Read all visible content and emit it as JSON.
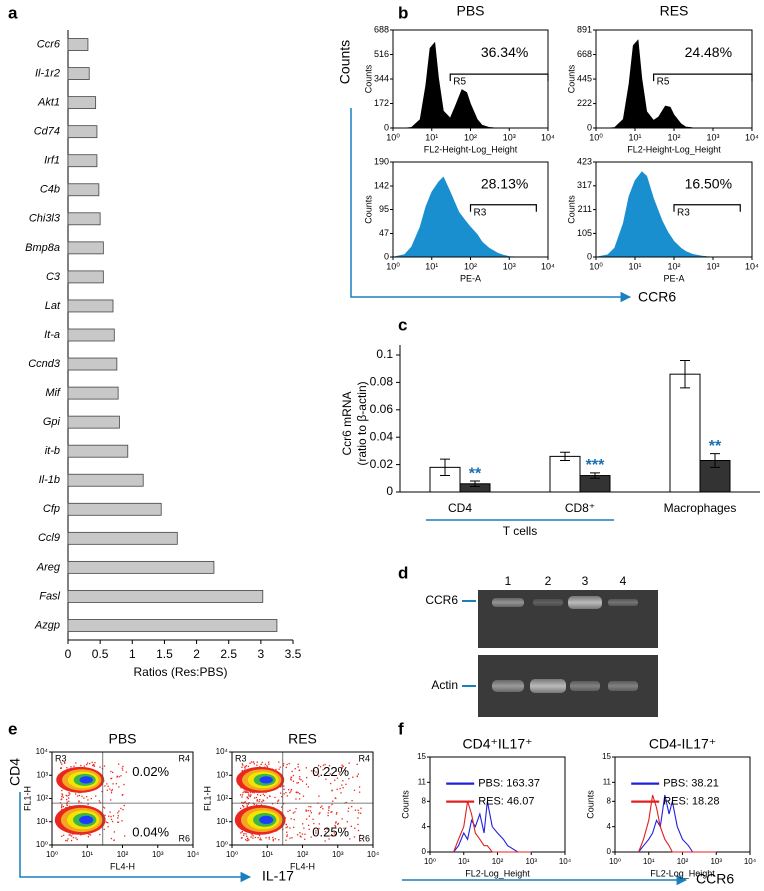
{
  "chart_data": [
    {
      "type": "bar",
      "panel": "a",
      "orientation": "horizontal",
      "categories": [
        "Ccr6",
        "Il-1r2",
        "Akt1",
        "Cd74",
        "Irf1",
        "C4b",
        "Chi3l3",
        "Bmp8a",
        "C3",
        "Lat",
        "It-a",
        "Ccnd3",
        "Mif",
        "Gpi",
        "it-b",
        "Il-1b",
        "Cfp",
        "Ccl9",
        "Areg",
        "Fasl",
        "Azgp"
      ],
      "values": [
        0.31,
        0.33,
        0.43,
        0.45,
        0.45,
        0.48,
        0.5,
        0.55,
        0.55,
        0.7,
        0.72,
        0.76,
        0.78,
        0.8,
        0.93,
        1.17,
        1.45,
        1.7,
        2.27,
        3.03,
        3.25
      ],
      "color": "#c8c8c8",
      "xlim": [
        0,
        3.5
      ],
      "xticks": [
        0,
        0.5,
        1,
        1.5,
        2,
        2.5,
        3,
        3.5
      ],
      "xlabel": "Ratios (Res:PBS)"
    },
    {
      "type": "area",
      "panel": "b",
      "title": "PBS",
      "group_ylabel": "Counts",
      "group_xlabel": "CCR6",
      "ylabel": "Counts",
      "xlabel": "FL2-Height-Log_Height",
      "log_x": true,
      "color": "#000000",
      "x": [
        1,
        2,
        3,
        5,
        7,
        9,
        12,
        15,
        20,
        30,
        40,
        60,
        80,
        100,
        150,
        200,
        300,
        500,
        1000,
        10000
      ],
      "values": [
        0,
        0,
        5,
        60,
        300,
        560,
        600,
        350,
        120,
        70,
        150,
        270,
        250,
        170,
        60,
        20,
        5,
        0,
        0,
        0
      ],
      "xlim": [
        1,
        10000
      ],
      "xticks": [
        {
          "value": 1,
          "label": "10⁰"
        },
        {
          "value": 10,
          "label": "10¹"
        },
        {
          "value": 100,
          "label": "10²"
        },
        {
          "value": 1000,
          "label": "10³"
        },
        {
          "value": 10000,
          "label": "10⁴"
        }
      ],
      "ylim": [
        0,
        688
      ],
      "yticks": [
        0,
        172,
        344,
        516,
        688
      ],
      "gate": {
        "name": "R5",
        "range": [
          30,
          10000
        ],
        "percent": 36.34,
        "percent_label": "36.34%"
      }
    },
    {
      "type": "area",
      "title": "RES",
      "ylabel": "Counts",
      "xlabel": "FL2-Height-Log_Height",
      "log_x": true,
      "color": "#000000",
      "x": [
        1,
        2,
        3,
        5,
        7,
        9,
        12,
        15,
        20,
        30,
        40,
        60,
        80,
        100,
        150,
        200,
        300,
        500,
        1000,
        10000
      ],
      "values": [
        0,
        0,
        5,
        80,
        400,
        750,
        800,
        450,
        150,
        70,
        100,
        200,
        190,
        120,
        40,
        10,
        3,
        0,
        0,
        0
      ],
      "xlim": [
        1,
        10000
      ],
      "xticks": [
        {
          "value": 1,
          "label": "10⁰"
        },
        {
          "value": 10,
          "label": "10¹"
        },
        {
          "value": 100,
          "label": "10²"
        },
        {
          "value": 1000,
          "label": "10³"
        },
        {
          "value": 10000,
          "label": "10⁴"
        }
      ],
      "ylim": [
        0,
        891
      ],
      "yticks": [
        0,
        222,
        445,
        668,
        891
      ],
      "gate": {
        "name": "R5",
        "range": [
          30,
          10000
        ],
        "percent": 24.48,
        "percent_label": "24.48%"
      }
    },
    {
      "type": "area",
      "ylabel": "Counts",
      "xlabel": "PE-A",
      "log_x": true,
      "color": "#1a8fd0",
      "x": [
        1,
        2,
        3,
        5,
        7,
        10,
        15,
        20,
        30,
        50,
        70,
        100,
        150,
        200,
        300,
        500,
        700,
        1000,
        2000,
        10000
      ],
      "values": [
        0,
        5,
        20,
        60,
        100,
        130,
        150,
        160,
        130,
        90,
        75,
        60,
        45,
        30,
        18,
        8,
        4,
        1,
        0,
        0
      ],
      "xlim": [
        1,
        10000
      ],
      "xticks": [
        {
          "value": 1,
          "label": "10⁰"
        },
        {
          "value": 10,
          "label": "10¹"
        },
        {
          "value": 100,
          "label": "10²"
        },
        {
          "value": 1000,
          "label": "10³"
        },
        {
          "value": 10000,
          "label": "10⁴"
        }
      ],
      "ylim": [
        0,
        190
      ],
      "yticks": [
        0,
        47,
        95,
        142,
        190
      ],
      "gate": {
        "name": "R3",
        "range": [
          100,
          5000
        ],
        "percent": 28.13,
        "percent_label": "28.13%"
      }
    },
    {
      "type": "area",
      "ylabel": "Counts",
      "xlabel": "PE-A",
      "log_x": true,
      "color": "#1a8fd0",
      "x": [
        1,
        2,
        3,
        5,
        7,
        10,
        15,
        20,
        30,
        50,
        70,
        100,
        150,
        200,
        300,
        500,
        700,
        1000,
        2000,
        10000
      ],
      "values": [
        0,
        10,
        40,
        150,
        270,
        340,
        380,
        360,
        260,
        160,
        110,
        70,
        40,
        25,
        12,
        5,
        2,
        0,
        0,
        0
      ],
      "xlim": [
        1,
        10000
      ],
      "xticks": [
        {
          "value": 1,
          "label": "10⁰"
        },
        {
          "value": 10,
          "label": "10¹"
        },
        {
          "value": 100,
          "label": "10²"
        },
        {
          "value": 1000,
          "label": "10³"
        },
        {
          "value": 10000,
          "label": "10⁴"
        }
      ],
      "ylim": [
        0,
        423
      ],
      "yticks": [
        0,
        105,
        211,
        317,
        423
      ],
      "gate": {
        "name": "R3",
        "range": [
          100,
          5000
        ],
        "percent": 16.5,
        "percent_label": "16.50%"
      }
    },
    {
      "type": "bar",
      "panel": "c",
      "ylabel": [
        "Ccr6 mRNA",
        "(ratio to β-actin)"
      ],
      "categories": [
        "CD4",
        "CD8⁺",
        "Macrophages"
      ],
      "group_label": "T cells",
      "series": [
        {
          "color": "#ffffff",
          "values": [
            0.018,
            0.026,
            0.086
          ],
          "errors": [
            0.006,
            0.003,
            0.01
          ]
        },
        {
          "color": "#333333",
          "values": [
            0.006,
            0.012,
            0.023
          ],
          "errors": [
            0.002,
            0.002,
            0.005
          ],
          "annotations": [
            "**",
            "***",
            "**"
          ],
          "annotation_color": "#1a6fb0"
        }
      ],
      "ylim": [
        0,
        0.1
      ],
      "yticks": [
        0,
        0.02,
        0.04,
        0.06,
        0.08,
        0.1
      ]
    },
    {
      "type": "density",
      "panel": "e",
      "title": "PBS",
      "group_ylabel": "CD4",
      "group_xlabel": "IL-17",
      "xlabel": "FL4-H",
      "ylabel": "FL1-H",
      "xlim": [
        1,
        10000
      ],
      "xticks": [
        {
          "value": 1,
          "label": "10⁰"
        },
        {
          "value": 10,
          "label": "10¹"
        },
        {
          "value": 100,
          "label": "10²"
        },
        {
          "value": 1000,
          "label": "10³"
        },
        {
          "value": 10000,
          "label": "10⁴"
        }
      ],
      "ylim": [
        1,
        10000
      ],
      "yticks": [
        {
          "value": 1,
          "label": "10⁰"
        },
        {
          "value": 10,
          "label": "10¹"
        },
        {
          "value": 100,
          "label": "10²"
        },
        {
          "value": 1000,
          "label": "10³"
        },
        {
          "value": 10000,
          "label": "10⁴"
        }
      ],
      "quadrants": {
        "names": [
          "R3",
          "R4",
          "R6"
        ],
        "values": [
          0.02,
          0.04
        ],
        "value_labels": [
          "0.02%",
          "0.04%"
        ]
      }
    },
    {
      "type": "density",
      "title": "RES",
      "xlabel": "FL4-H",
      "ylabel": "FL1-H",
      "xlim": [
        1,
        10000
      ],
      "xticks": [
        {
          "value": 1,
          "label": "10⁰"
        },
        {
          "value": 10,
          "label": "10¹"
        },
        {
          "value": 100,
          "label": "10²"
        },
        {
          "value": 1000,
          "label": "10³"
        },
        {
          "value": 10000,
          "label": "10⁴"
        }
      ],
      "ylim": [
        1,
        10000
      ],
      "yticks": [
        {
          "value": 1,
          "label": "10⁰"
        },
        {
          "value": 10,
          "label": "10¹"
        },
        {
          "value": 100,
          "label": "10²"
        },
        {
          "value": 1000,
          "label": "10³"
        },
        {
          "value": 10000,
          "label": "10⁴"
        }
      ],
      "quadrants": {
        "names": [
          "R3",
          "R4",
          "R6"
        ],
        "values": [
          0.22,
          0.25
        ],
        "value_labels": [
          "0.22%",
          "0.25%"
        ]
      }
    },
    {
      "type": "line",
      "panel": "f",
      "title": "CD4⁺IL17⁺",
      "group_xlabel": "CCR6",
      "ylabel": "Counts",
      "xlabel": "FL2-Log_Height",
      "log_x": true,
      "x": [
        5,
        7,
        10,
        13,
        17,
        22,
        30,
        40,
        50,
        70,
        100,
        150,
        200,
        400,
        1000
      ],
      "series": [
        {
          "name": "PBS: 163.37",
          "color": "#2020d8",
          "values": [
            0,
            1,
            3,
            2,
            5,
            4,
            6,
            3,
            8,
            4,
            3,
            2,
            1,
            0,
            0
          ]
        },
        {
          "name": "RES: 46.07",
          "color": "#e02020",
          "values": [
            0,
            2,
            4,
            8,
            6,
            3,
            2,
            1,
            1,
            0,
            0,
            0,
            0,
            0,
            0
          ]
        }
      ],
      "xlim": [
        1,
        10000
      ],
      "xticks": [
        {
          "value": 1,
          "label": "10⁰"
        },
        {
          "value": 10,
          "label": "10¹"
        },
        {
          "value": 100,
          "label": "10²"
        },
        {
          "value": 1000,
          "label": "10³"
        },
        {
          "value": 10000,
          "label": "10⁴"
        }
      ],
      "ylim": [
        0,
        15
      ],
      "yticks": [
        0,
        4,
        8,
        11,
        15
      ]
    },
    {
      "type": "line",
      "title": "CD4-IL17⁺",
      "ylabel": "Counts",
      "xlabel": "FL2-Log_Height",
      "log_x": true,
      "x": [
        5,
        7,
        10,
        13,
        17,
        22,
        30,
        40,
        50,
        70,
        100,
        150,
        200,
        400,
        1000
      ],
      "series": [
        {
          "name": "PBS: 38.21",
          "color": "#2020d8",
          "values": [
            0,
            1,
            2,
            3,
            5,
            4,
            9,
            6,
            8,
            4,
            2,
            1,
            0,
            0,
            0
          ]
        },
        {
          "name": "RES: 18.28",
          "color": "#e02020",
          "values": [
            0,
            2,
            5,
            9,
            7,
            4,
            2,
            1,
            0,
            0,
            0,
            0,
            0,
            0,
            0
          ]
        }
      ],
      "xlim": [
        1,
        10000
      ],
      "xticks": [
        {
          "value": 1,
          "label": "10⁰"
        },
        {
          "value": 10,
          "label": "10¹"
        },
        {
          "value": 100,
          "label": "10²"
        },
        {
          "value": 1000,
          "label": "10³"
        },
        {
          "value": 10000,
          "label": "10⁴"
        }
      ],
      "ylim": [
        0,
        15
      ],
      "yticks": [
        0,
        4,
        8,
        11,
        15
      ]
    }
  ],
  "gel": {
    "panel": "d",
    "lanes": [
      "1",
      "2",
      "3",
      "4"
    ],
    "rows": [
      "CCR6",
      "Actin"
    ]
  }
}
